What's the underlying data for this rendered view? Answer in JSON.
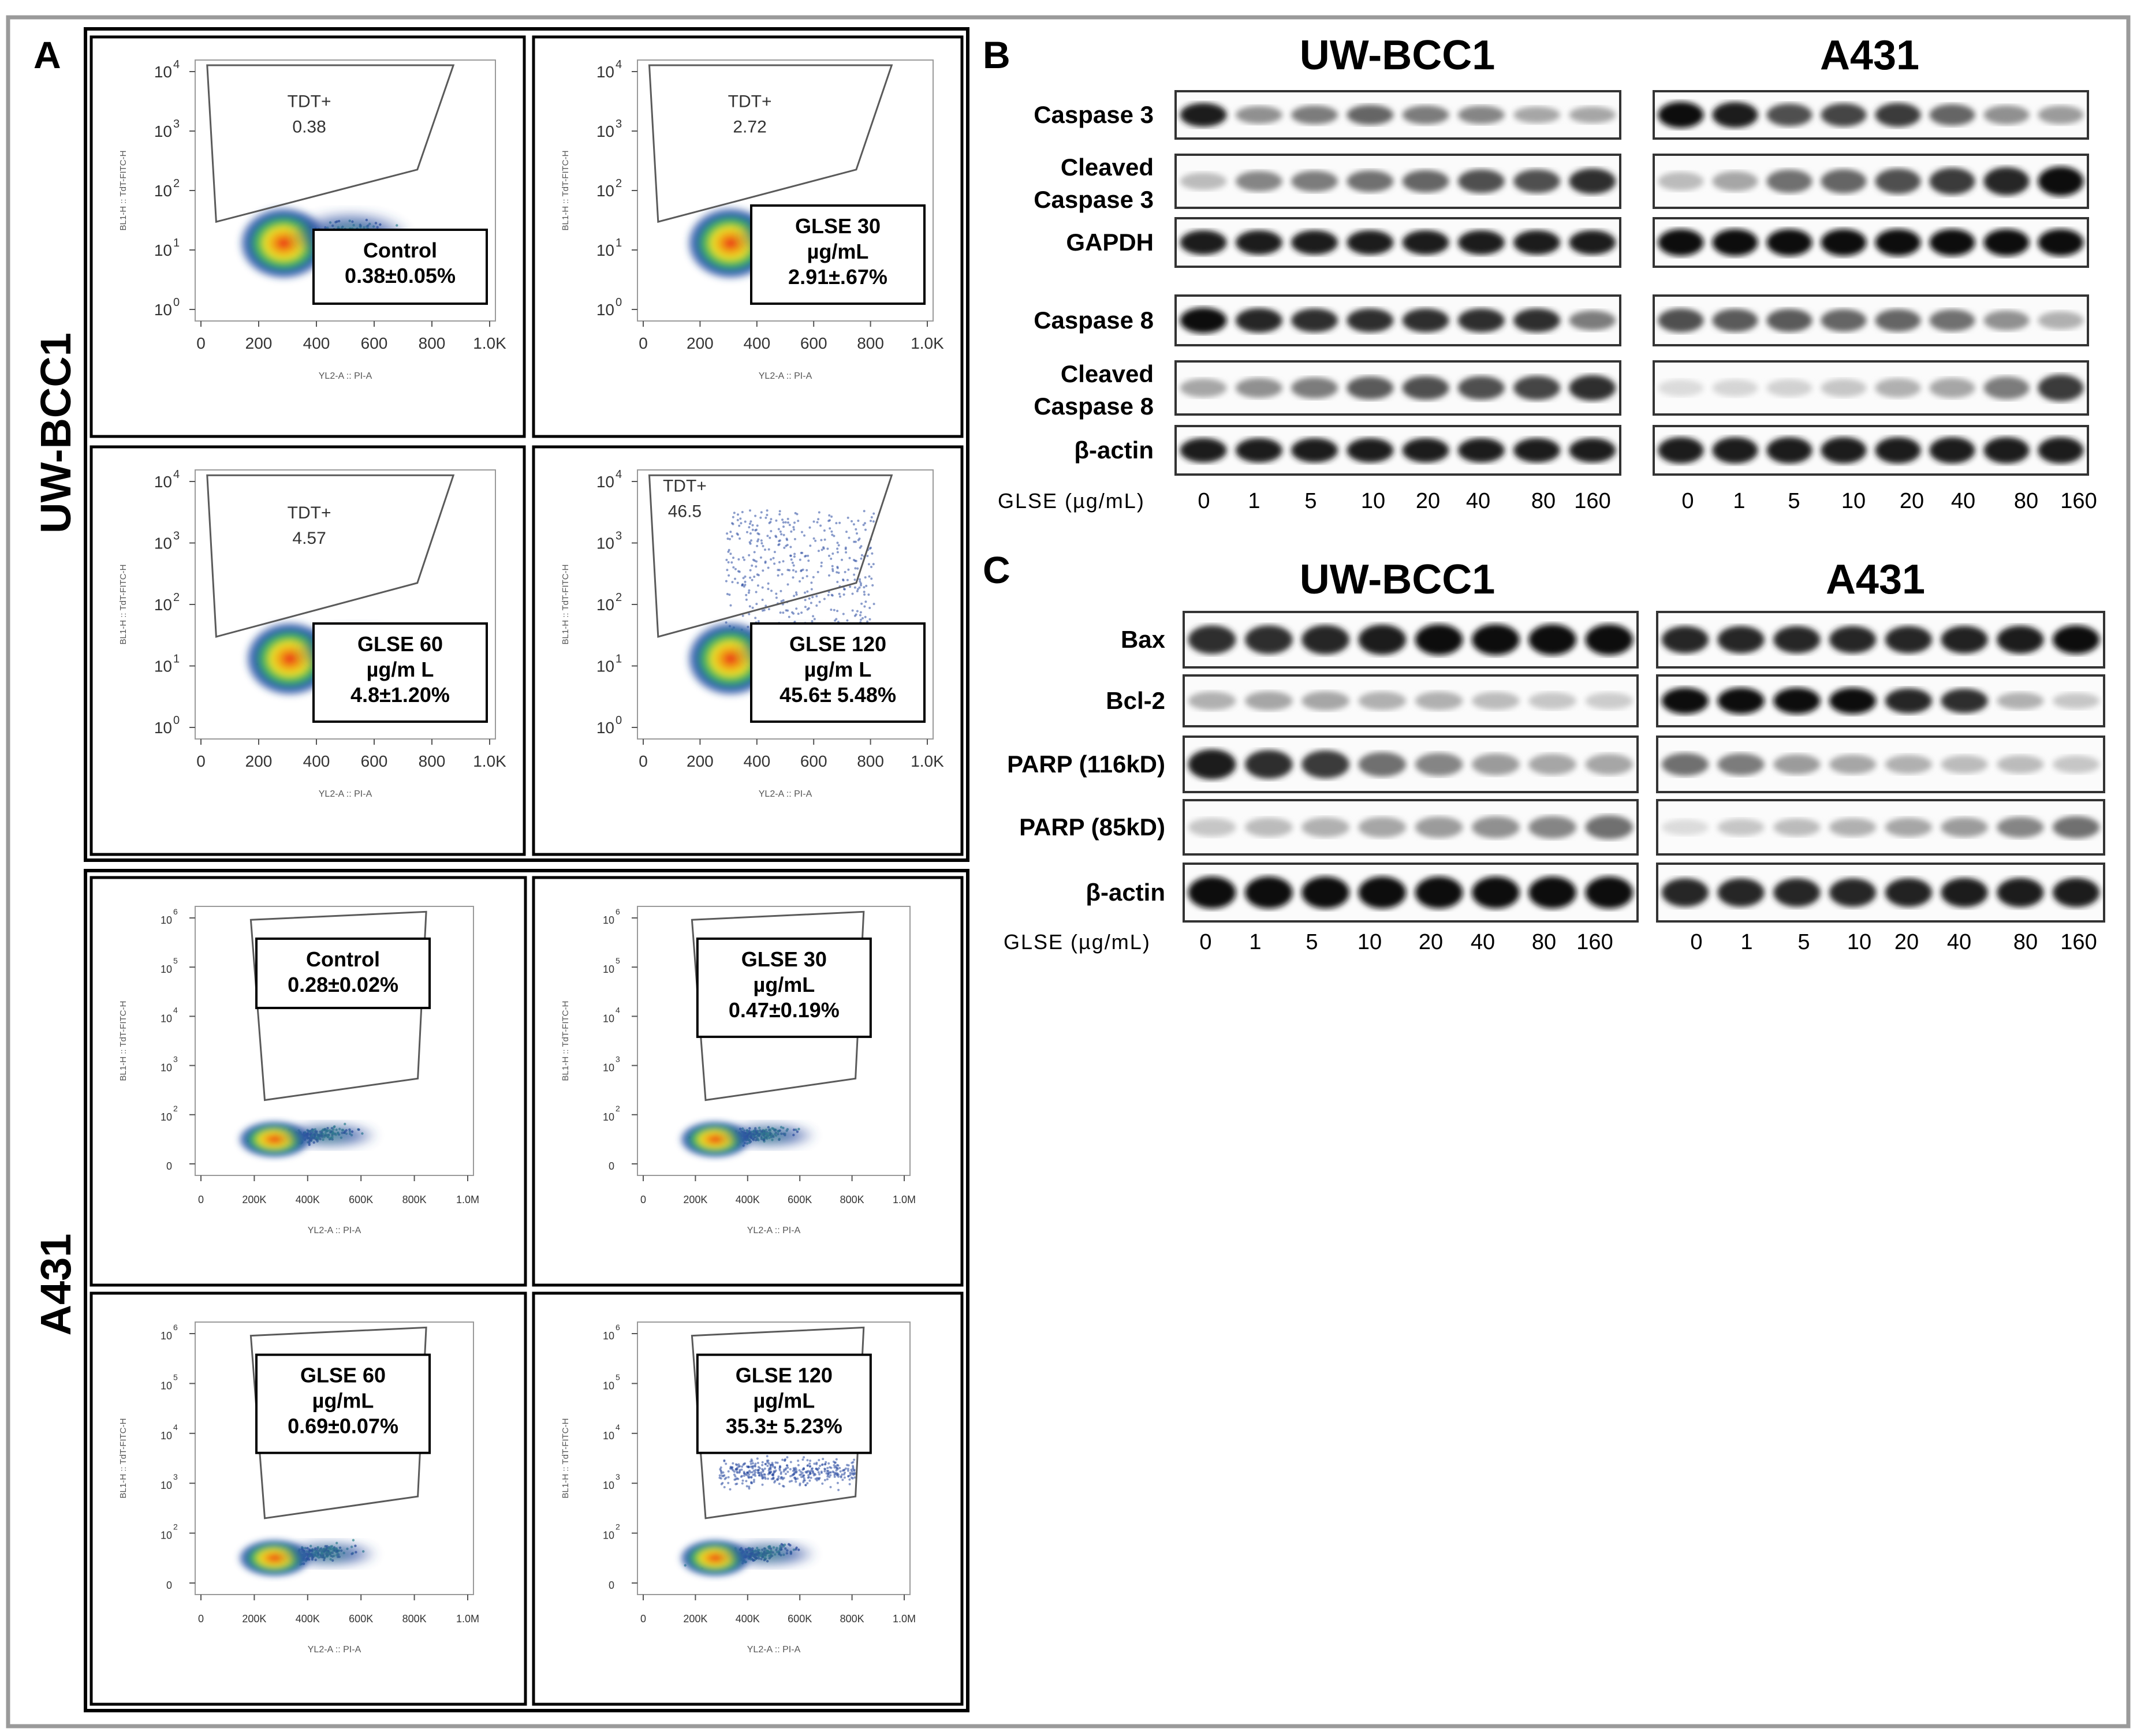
{
  "panel_letters": {
    "a": "A",
    "b": "B",
    "c": "C"
  },
  "cell_lines": {
    "uw": "UW-BCC1",
    "a431": "A431"
  },
  "flow": {
    "uw_ylabel": "BL1-H :: TdT-FITC-H",
    "uw_xlabel": "YL2-A :: PI-A",
    "uw_xticks": [
      "0",
      "200",
      "400",
      "600",
      "800",
      "1.0K"
    ],
    "uw_yticks": [
      "10",
      "10",
      "10",
      "10",
      "10"
    ],
    "uw_yexps": [
      "0",
      "1",
      "2",
      "3",
      "4"
    ],
    "a431_ylabel": "BL1-H :: TdT-FITC-H",
    "a431_xlabel": "YL2-A :: PI-A",
    "a431_xticks": [
      "0",
      "200K",
      "400K",
      "600K",
      "800K",
      "1.0M"
    ],
    "a431_yticks": [
      "0",
      "10",
      "10",
      "10",
      "10",
      "10"
    ],
    "a431_yexps": [
      "",
      "2",
      "3",
      "4",
      "5",
      "6"
    ],
    "gate_label": "TDT+",
    "uw": [
      {
        "gate": "0.38",
        "lines": [
          "Control",
          "0.38±0.05%"
        ]
      },
      {
        "gate": "2.72",
        "lines": [
          "GLSE 30",
          "µg/mL",
          "2.91±.67%"
        ]
      },
      {
        "gate": "4.57",
        "lines": [
          "GLSE 60",
          "µg/m L",
          "4.8±1.20%"
        ]
      },
      {
        "gate": "46.5",
        "lines": [
          "GLSE 120",
          "µg/m L",
          "45.6± 5.48%"
        ]
      }
    ],
    "a431": [
      {
        "lines": [
          "Control",
          "0.28±0.02%"
        ]
      },
      {
        "lines": [
          "GLSE 30",
          "µg/mL",
          "0.47±0.19%"
        ]
      },
      {
        "lines": [
          "GLSE 60",
          "µg/mL",
          "0.69±0.07%"
        ]
      },
      {
        "lines": [
          "GLSE 120",
          "µg/mL",
          "35.3± 5.23%"
        ]
      }
    ]
  },
  "westernB": {
    "title_uw": "UW-BCC1",
    "title_a431": "A431",
    "labels": [
      [
        "Caspase 3"
      ],
      [
        "Cleaved",
        "Caspase 3"
      ],
      [
        "GAPDH"
      ],
      [
        "Caspase 8"
      ],
      [
        "Cleaved",
        "Caspase 8"
      ],
      [
        "β-actin"
      ]
    ],
    "axis_label": "GLSE (µg/mL)",
    "doses": [
      "0",
      "1",
      "5",
      "10",
      "20",
      "40",
      "80",
      "160"
    ]
  },
  "westernC": {
    "title_uw": "UW-BCC1",
    "title_a431": "A431",
    "labels": [
      "Bax",
      "Bcl-2",
      "PARP (116kD)",
      "PARP (85kD)",
      "β-actin"
    ],
    "axis_label": "GLSE (µg/mL)",
    "doses": [
      "0",
      "1",
      "5",
      "10",
      "20",
      "40",
      "80",
      "160"
    ]
  }
}
